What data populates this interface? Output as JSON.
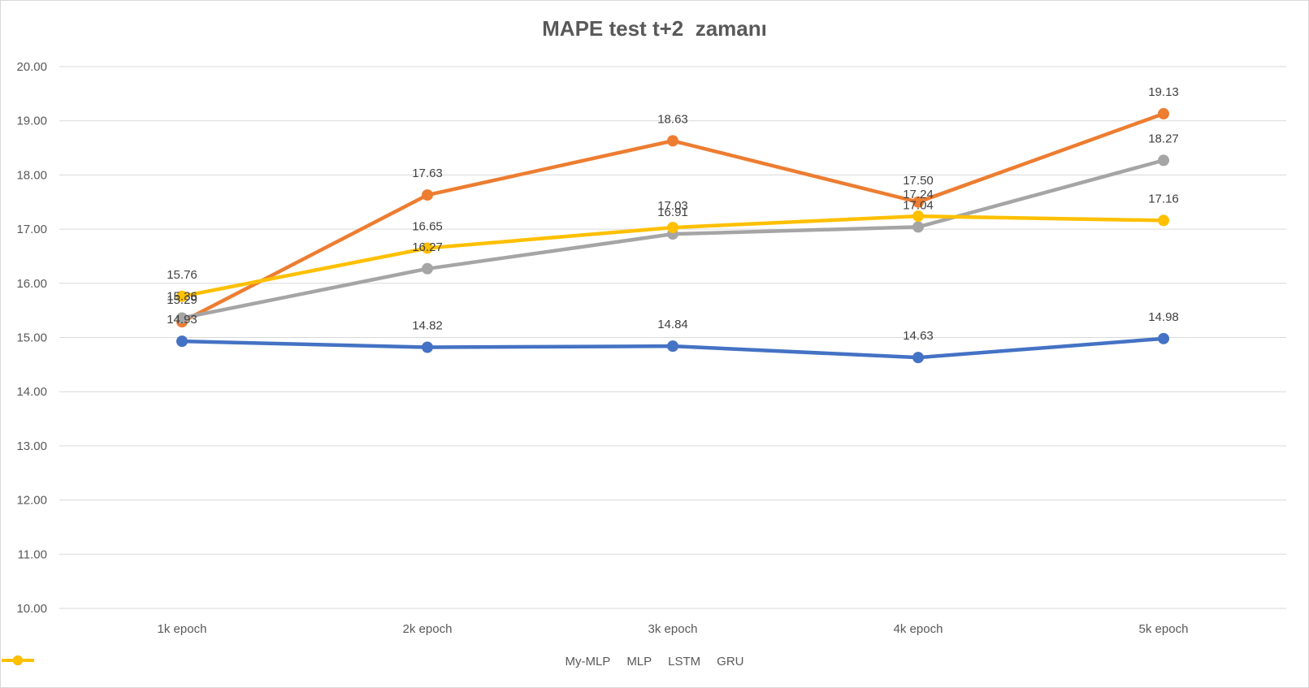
{
  "chart_data": {
    "type": "line",
    "title": "MAPE test t+2  zamanı",
    "xlabel": "",
    "ylabel": "",
    "categories": [
      "1k epoch",
      "2k epoch",
      "3k epoch",
      "4k epoch",
      "5k epoch"
    ],
    "ylim": [
      10,
      20
    ],
    "yticks": [
      "10.00",
      "11.00",
      "12.00",
      "13.00",
      "14.00",
      "15.00",
      "16.00",
      "17.00",
      "18.00",
      "19.00",
      "20.00"
    ],
    "grid": true,
    "legend_position": "bottom",
    "series": [
      {
        "name": "My-MLP",
        "color": "#4472c4",
        "values": [
          14.93,
          14.82,
          14.84,
          14.63,
          14.98
        ],
        "labels": [
          "14.93",
          "14.82",
          "14.84",
          "14.63",
          "14.98"
        ]
      },
      {
        "name": "MLP",
        "color": "#ed7d31",
        "values": [
          15.29,
          17.63,
          18.63,
          17.5,
          19.13
        ],
        "labels": [
          "15.29",
          "17.63",
          "18.63",
          "17.50",
          "19.13"
        ]
      },
      {
        "name": "LSTM",
        "color": "#a5a5a5",
        "values": [
          15.36,
          16.27,
          16.91,
          17.04,
          18.27
        ],
        "labels": [
          "15.36",
          "16.27",
          "16.91",
          "17.04",
          "18.27"
        ]
      },
      {
        "name": "GRU",
        "color": "#ffc000",
        "values": [
          15.76,
          16.65,
          17.03,
          17.24,
          17.16
        ],
        "labels": [
          "15.76",
          "16.65",
          "17.03",
          "17.24",
          "17.16"
        ]
      }
    ]
  }
}
